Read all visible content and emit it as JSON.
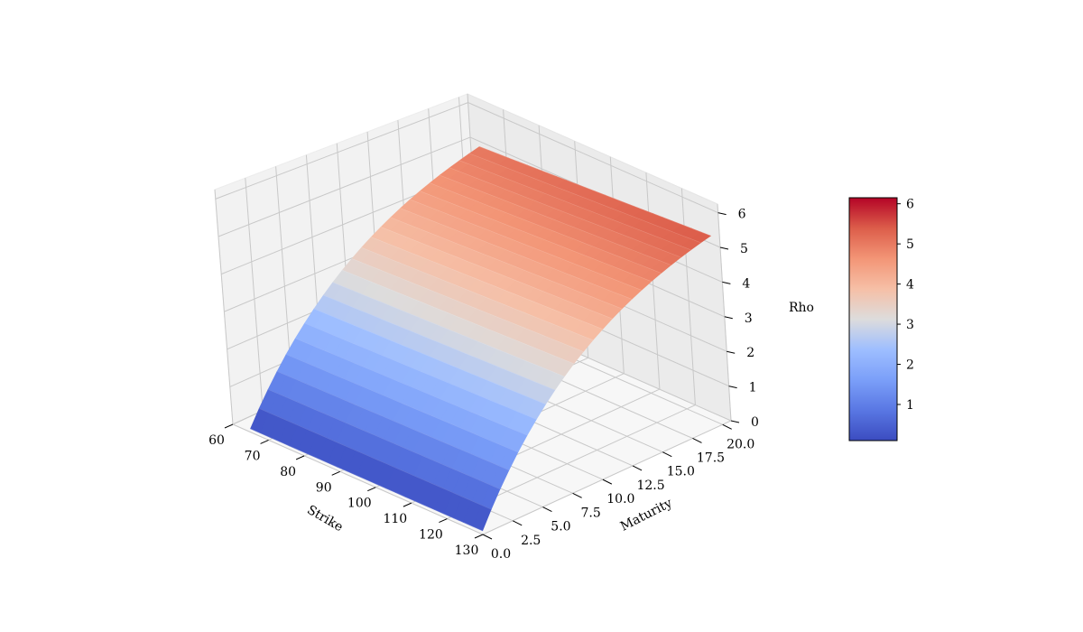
{
  "chart_data": {
    "type": "surface",
    "title": "",
    "xlabel": "Strike",
    "ylabel": "Maturity",
    "zlabel": "Rho",
    "x_ticks": [
      "60",
      "70",
      "80",
      "90",
      "100",
      "110",
      "120",
      "130"
    ],
    "y_ticks": [
      "0.0",
      "2.5",
      "5.0",
      "7.5",
      "10.0",
      "12.5",
      "15.0",
      "17.5",
      "20.0"
    ],
    "z_ticks": [
      "0",
      "1",
      "2",
      "3",
      "4",
      "5",
      "6"
    ],
    "colorbar_ticks": [
      "1",
      "2",
      "3",
      "4",
      "5",
      "6"
    ],
    "xlim": [
      60,
      130
    ],
    "ylim": [
      0,
      20
    ],
    "zlim": [
      0,
      6.2
    ],
    "colorbar_range": [
      0.1,
      6.15
    ],
    "colormap": "coolwarm",
    "grid": true,
    "surface": {
      "description_values": "Rho rises with Maturity (concave), ~0.1 at maturity 0 to ~6.15 at maturity 20; increases slightly with strike",
      "strike_range": [
        65,
        130
      ],
      "maturity_range": [
        0,
        20
      ],
      "rho_at_strike_65": {
        "maturity": [
          0,
          5,
          10,
          15,
          20
        ],
        "rho": [
          0.1,
          2.5,
          4.1,
          5.1,
          5.5
        ]
      },
      "rho_at_strike_130": {
        "maturity": [
          0,
          5,
          10,
          15,
          20
        ],
        "rho": [
          0.15,
          2.7,
          4.4,
          5.5,
          6.15
        ]
      }
    }
  }
}
